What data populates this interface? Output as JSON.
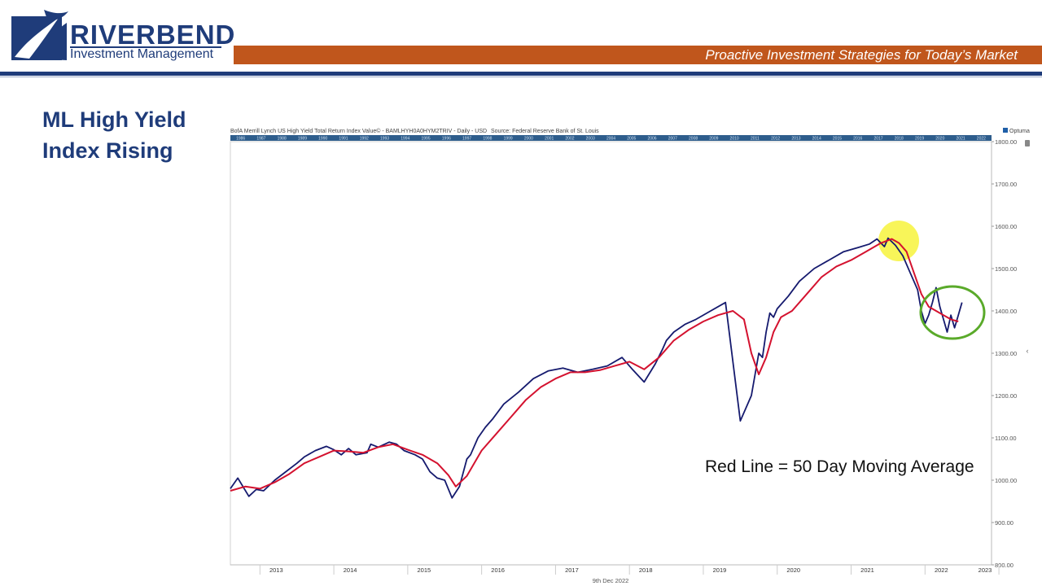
{
  "header": {
    "brand_name": "RIVERBEND",
    "brand_sub": "Investment Management",
    "tagline": "Proactive Investment Strategies for Today’s Market"
  },
  "slide": {
    "title_line1": "ML High Yield",
    "title_line2": "Index Rising"
  },
  "colors": {
    "brand_blue": "#1f3c7a",
    "brand_orange": "#c0561c",
    "price_line": "#151a6e",
    "average_line": "#d4122f",
    "peak_highlight": "#f5f000",
    "recent_circle": "#5aaa2a"
  },
  "chart_data": {
    "type": "line",
    "title": "BofA Merrill Lynch US High Yield Total Return Index Value© - BAMLHYH0A0HYM2TRIV - Daily - USD",
    "source": "Source: Federal Reserve Bank of St. Louis",
    "vendor": "Optuma",
    "date_label": "9th Dec 2022",
    "ylim": [
      800,
      1800
    ],
    "y_ticks": [
      "800.00",
      "900.00",
      "1000.00",
      "1100.00",
      "1200.00",
      "1300.00",
      "1400.00",
      "1500.00",
      "1600.00",
      "1700.00",
      "1800.00"
    ],
    "x_ticks": [
      "2013",
      "2014",
      "2015",
      "2016",
      "2017",
      "2018",
      "2019",
      "2020",
      "2021",
      "2022",
      "2023"
    ],
    "overview_years": [
      "1986",
      "1987",
      "1988",
      "1989",
      "1990",
      "1991",
      "1992",
      "1993",
      "1994",
      "1995",
      "1996",
      "1997",
      "1998",
      "1999",
      "2000",
      "2001",
      "2002",
      "2003",
      "2004",
      "2005",
      "2006",
      "2007",
      "2008",
      "2009",
      "2010",
      "2011",
      "2012",
      "2013",
      "2014",
      "2015",
      "2016",
      "2017",
      "2018",
      "2019",
      "2020",
      "2021",
      "2022"
    ],
    "annotation": "Red Line = 50 Day Moving Average",
    "series": [
      {
        "x": [
          2012.6,
          2012.7,
          2012.85,
          2012.95,
          2013.05,
          2013.2,
          2013.35,
          2013.5,
          2013.6,
          2013.75,
          2013.9,
          2014.0,
          2014.1,
          2014.2,
          2014.3,
          2014.45,
          2014.5,
          2014.6,
          2014.75,
          2014.85,
          2014.95,
          2015.1,
          2015.2,
          2015.3,
          2015.4,
          2015.5,
          2015.6,
          2015.7,
          2015.8,
          2015.85,
          2015.95,
          2016.05,
          2016.15,
          2016.3,
          2016.5,
          2016.7,
          2016.9,
          2017.1,
          2017.3,
          2017.5,
          2017.7,
          2017.9,
          2018.05,
          2018.2,
          2018.35,
          2018.45,
          2018.5,
          2018.6,
          2018.75,
          2018.9,
          2019.1,
          2019.3,
          2019.5,
          2019.65,
          2019.75,
          2019.8,
          2019.85,
          2019.9,
          2019.95,
          2020.0,
          2020.15,
          2020.3,
          2020.5,
          2020.7,
          2020.9,
          2021.1,
          2021.25,
          2021.35,
          2021.45,
          2021.5,
          2021.6,
          2021.7,
          2021.8,
          2021.9,
          2021.95,
          2022.0,
          2022.05,
          2022.1,
          2022.15,
          2022.2,
          2022.25,
          2022.3,
          2022.35,
          2022.4,
          2022.45,
          2022.5
        ],
        "y": [
          980,
          1005,
          962,
          978,
          975,
          1000,
          1020,
          1040,
          1055,
          1070,
          1080,
          1072,
          1060,
          1075,
          1060,
          1065,
          1085,
          1078,
          1090,
          1085,
          1070,
          1060,
          1050,
          1020,
          1005,
          1000,
          958,
          985,
          1050,
          1060,
          1100,
          1125,
          1145,
          1180,
          1208,
          1240,
          1258,
          1265,
          1255,
          1262,
          1270,
          1290,
          1260,
          1232,
          1275,
          1310,
          1330,
          1350,
          1368,
          1380,
          1400,
          1420,
          1140,
          1200,
          1300,
          1290,
          1350,
          1395,
          1385,
          1405,
          1435,
          1470,
          1500,
          1520,
          1540,
          1550,
          1558,
          1570,
          1552,
          1572,
          1555,
          1530,
          1490,
          1450,
          1400,
          1370,
          1390,
          1420,
          1455,
          1410,
          1380,
          1350,
          1390,
          1360,
          1390,
          1420
        ]
      },
      {
        "x": [
          2012.6,
          2012.8,
          2013.0,
          2013.2,
          2013.4,
          2013.6,
          2013.8,
          2014.0,
          2014.2,
          2014.4,
          2014.6,
          2014.8,
          2015.0,
          2015.2,
          2015.4,
          2015.55,
          2015.65,
          2015.8,
          2016.0,
          2016.2,
          2016.4,
          2016.6,
          2016.8,
          2017.0,
          2017.2,
          2017.4,
          2017.6,
          2017.8,
          2018.0,
          2018.2,
          2018.4,
          2018.6,
          2018.8,
          2019.0,
          2019.2,
          2019.4,
          2019.55,
          2019.65,
          2019.75,
          2019.85,
          2019.95,
          2020.05,
          2020.2,
          2020.4,
          2020.6,
          2020.8,
          2021.0,
          2021.2,
          2021.4,
          2021.55,
          2021.65,
          2021.75,
          2021.85,
          2021.95,
          2022.05,
          2022.15,
          2022.25,
          2022.35,
          2022.45
        ],
        "y": [
          975,
          985,
          980,
          995,
          1015,
          1040,
          1055,
          1070,
          1068,
          1065,
          1078,
          1085,
          1072,
          1060,
          1040,
          1012,
          985,
          1010,
          1070,
          1110,
          1150,
          1190,
          1220,
          1240,
          1255,
          1255,
          1260,
          1270,
          1280,
          1262,
          1290,
          1330,
          1355,
          1375,
          1390,
          1400,
          1380,
          1300,
          1250,
          1290,
          1350,
          1385,
          1400,
          1440,
          1480,
          1505,
          1520,
          1540,
          1560,
          1570,
          1560,
          1540,
          1490,
          1440,
          1410,
          1400,
          1390,
          1380,
          1375
        ]
      }
    ]
  }
}
